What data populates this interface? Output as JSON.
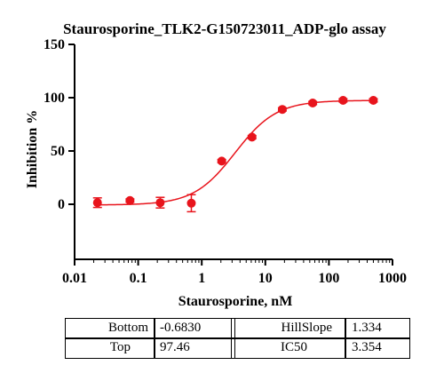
{
  "chart_data": {
    "type": "scatter",
    "title": "Staurosporine_TLK2-G150723011_ADP-glo assay",
    "xlabel": "Staurosporine, nM",
    "ylabel": "Inhibition %",
    "xscale": "log",
    "xlim": [
      0.01,
      1000
    ],
    "ylim": [
      -50,
      150
    ],
    "xticks": [
      0.01,
      0.1,
      1,
      10,
      100,
      1000
    ],
    "xtick_labels": [
      "0.01",
      "0.1",
      "1",
      "10",
      "100",
      "1000"
    ],
    "yticks": [
      0,
      50,
      100,
      150
    ],
    "ytick_labels": [
      "0",
      "50",
      "100",
      "150"
    ],
    "grid": false,
    "color": "#e8141c",
    "series": [
      {
        "x": [
          0.0229,
          0.0743,
          0.222,
          0.686,
          2.06,
          6.17,
          18.5,
          55.6,
          167,
          500
        ],
        "y": [
          1.5,
          3.5,
          1.5,
          1.0,
          40.5,
          63.0,
          89.0,
          95.0,
          97.5,
          97.5
        ],
        "err": [
          4.5,
          1.5,
          5.0,
          8.0,
          1.5,
          1.5,
          1.5,
          1.5,
          1.5,
          1.5
        ]
      }
    ],
    "fit": {
      "model": "four-parameter logistic",
      "bottom": -0.683,
      "top": 97.46,
      "hillslope": 1.334,
      "ic50": 3.354
    }
  },
  "params_table": {
    "rows": [
      [
        {
          "label": "Bottom",
          "value": "-0.6830"
        },
        {
          "label": "HillSlope",
          "value": "1.334"
        }
      ],
      [
        {
          "label": "Top",
          "value": "97.46"
        },
        {
          "label": "IC50",
          "value": "3.354"
        }
      ]
    ]
  }
}
